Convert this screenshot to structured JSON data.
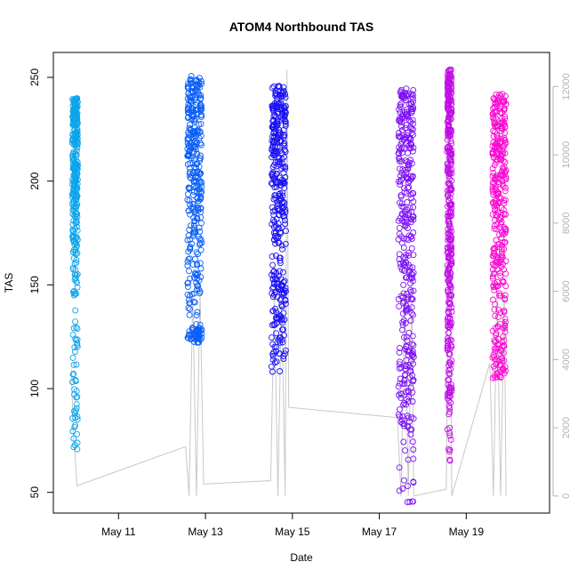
{
  "chart_data": {
    "type": "scatter",
    "title": "ATOM4 Northbound TAS",
    "xlabel": "Date",
    "ylabel": "TAS",
    "xlim": [
      "2019-05-09T12:00",
      "2019-05-20T22:00"
    ],
    "ylim": [
      40,
      262
    ],
    "y2lim": [
      -500,
      13000
    ],
    "x_ticks": [
      {
        "label": "May 11",
        "x": "2019-05-11"
      },
      {
        "label": "May 13",
        "x": "2019-05-13"
      },
      {
        "label": "May 15",
        "x": "2019-05-15"
      },
      {
        "label": "May 17",
        "x": "2019-05-17"
      },
      {
        "label": "May 19",
        "x": "2019-05-19"
      }
    ],
    "y_ticks": [
      50,
      100,
      150,
      200,
      250
    ],
    "y2_ticks": [
      0,
      2000,
      4000,
      6000,
      8000,
      10000,
      12000
    ],
    "grid": false,
    "scatter_series": [
      {
        "start": "2019-05-09T22:30",
        "end": "2019-05-10T01:30",
        "core": [
          140,
          240
        ],
        "outliers": [
          70,
          140
        ],
        "color": "#0da4ea"
      },
      {
        "start": "2019-05-12T14:00",
        "end": "2019-05-12T22:00",
        "core": [
          122,
          251
        ],
        "outliers": [
          122,
          130
        ],
        "color": "#0a5ef7"
      },
      {
        "start": "2019-05-14T12:30",
        "end": "2019-05-14T20:30",
        "core": [
          110,
          246
        ],
        "outliers": [
          108,
          150
        ],
        "color": "#1a10f5"
      },
      {
        "start": "2019-05-17T10:30",
        "end": "2019-05-17T19:00",
        "core": [
          45,
          245
        ],
        "outliers": [
          45,
          145
        ],
        "color": "#7b10f5"
      },
      {
        "start": "2019-05-18T13:30",
        "end": "2019-05-18T16:00",
        "core": [
          60,
          254
        ],
        "outliers": [
          60,
          250
        ],
        "color": "#c20ce6"
      },
      {
        "start": "2019-05-19T14:30",
        "end": "2019-05-19T22:00",
        "core": [
          105,
          242
        ],
        "outliers": [
          105,
          125
        ],
        "color": "#fa0ad2"
      }
    ],
    "altitude_series": {
      "color": "#c8c8c8",
      "points": [
        [
          "2019-05-09T22:00",
          3700
        ],
        [
          "2019-05-09T23:00",
          1700
        ],
        [
          "2019-05-10T00:00",
          1200
        ],
        [
          "2019-05-10T01:00",
          300
        ],
        [
          "2019-05-12T13:00",
          1450
        ],
        [
          "2019-05-12T15:00",
          0
        ],
        [
          "2019-05-12T17:00",
          6000
        ],
        [
          "2019-05-12T19:00",
          0
        ],
        [
          "2019-05-12T21:00",
          6000
        ],
        [
          "2019-05-12T23:00",
          350
        ],
        [
          "2019-05-14T12:00",
          450
        ],
        [
          "2019-05-14T14:00",
          6000
        ],
        [
          "2019-05-14T16:00",
          0
        ],
        [
          "2019-05-14T18:00",
          6000
        ],
        [
          "2019-05-14T20:00",
          0
        ],
        [
          "2019-05-14T21:00",
          12500
        ],
        [
          "2019-05-14T22:00",
          2600
        ],
        [
          "2019-05-17T10:00",
          2300
        ],
        [
          "2019-05-17T12:00",
          0
        ],
        [
          "2019-05-17T14:00",
          6000
        ],
        [
          "2019-05-17T16:00",
          0
        ],
        [
          "2019-05-17T18:00",
          6000
        ],
        [
          "2019-05-17T19:00",
          0
        ],
        [
          "2019-05-18T13:00",
          200
        ],
        [
          "2019-05-18T14:00",
          7000
        ],
        [
          "2019-05-18T15:00",
          12000
        ],
        [
          "2019-05-18T16:00",
          0
        ],
        [
          "2019-05-19T13:00",
          3900
        ],
        [
          "2019-05-19T15:00",
          0
        ],
        [
          "2019-05-19T17:00",
          6000
        ],
        [
          "2019-05-19T19:00",
          0
        ],
        [
          "2019-05-19T21:00",
          6000
        ],
        [
          "2019-05-19T22:00",
          0
        ]
      ]
    }
  }
}
